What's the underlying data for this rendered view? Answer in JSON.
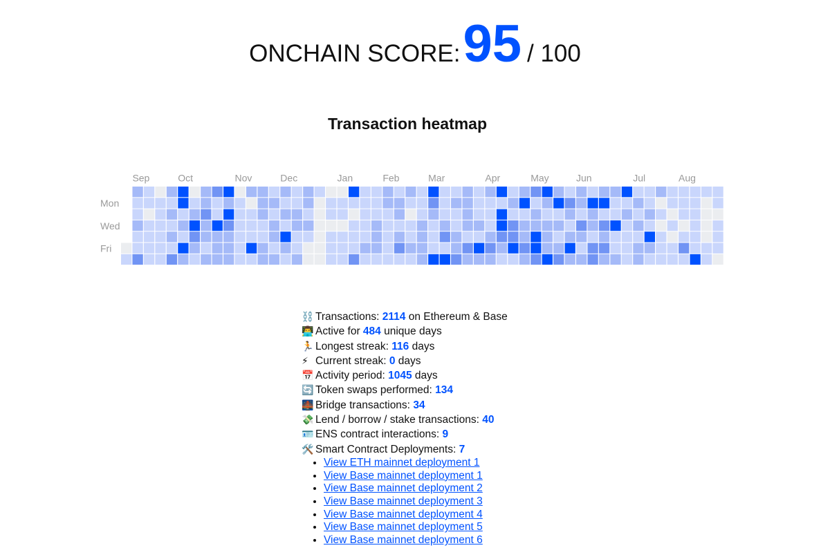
{
  "header": {
    "label": "ONCHAIN SCORE:",
    "score": 95,
    "max": "/ 100"
  },
  "chart_data": {
    "type": "heatmap",
    "title": "Transaction heatmap",
    "months": [
      "Sep",
      "Oct",
      "Nov",
      "Dec",
      "Jan",
      "Feb",
      "Mar",
      "Apr",
      "May",
      "Jun",
      "Jul",
      "Aug"
    ],
    "days": [
      null,
      "Mon",
      null,
      "Wed",
      null,
      "Fri",
      null
    ],
    "colors": [
      "#ebedf0",
      "#c9d6fc",
      "#a5baf8",
      "#7194f4",
      "#0052ff"
    ],
    "values": [
      [
        null,
        2,
        1,
        0,
        2,
        4,
        0,
        2,
        3,
        4,
        0,
        2,
        2,
        1,
        2,
        1,
        2,
        1,
        0,
        0,
        4,
        1,
        1,
        2,
        1,
        2,
        1,
        4,
        1,
        1,
        2,
        1,
        2,
        4,
        1,
        2,
        3,
        4,
        2,
        1,
        2,
        1,
        2,
        2,
        4,
        1,
        1,
        2,
        1,
        1,
        1,
        1,
        1
      ],
      [
        null,
        1,
        1,
        1,
        1,
        4,
        1,
        2,
        1,
        2,
        1,
        0,
        2,
        2,
        1,
        1,
        2,
        0,
        1,
        1,
        1,
        1,
        1,
        2,
        2,
        1,
        1,
        3,
        1,
        2,
        2,
        1,
        1,
        1,
        2,
        4,
        1,
        2,
        4,
        3,
        2,
        4,
        4,
        1,
        1,
        2,
        1,
        0,
        1,
        1,
        1,
        0,
        1
      ],
      [
        null,
        1,
        0,
        1,
        2,
        1,
        2,
        3,
        1,
        4,
        1,
        1,
        2,
        1,
        2,
        2,
        1,
        0,
        1,
        1,
        0,
        1,
        1,
        1,
        2,
        0,
        1,
        2,
        1,
        1,
        2,
        1,
        1,
        4,
        1,
        1,
        2,
        1,
        1,
        2,
        1,
        2,
        1,
        1,
        2,
        1,
        2,
        1,
        0,
        1,
        1,
        0,
        0
      ],
      [
        null,
        2,
        1,
        1,
        1,
        2,
        4,
        2,
        4,
        3,
        1,
        1,
        1,
        2,
        1,
        2,
        2,
        0,
        0,
        0,
        1,
        1,
        2,
        1,
        1,
        1,
        2,
        1,
        2,
        1,
        2,
        2,
        1,
        4,
        3,
        2,
        2,
        2,
        2,
        1,
        3,
        2,
        3,
        4,
        1,
        2,
        1,
        0,
        1,
        0,
        1,
        0,
        1
      ],
      [
        null,
        1,
        1,
        1,
        2,
        1,
        3,
        2,
        2,
        2,
        1,
        1,
        1,
        2,
        4,
        1,
        1,
        0,
        1,
        1,
        1,
        1,
        2,
        1,
        2,
        1,
        2,
        1,
        3,
        2,
        1,
        1,
        2,
        3,
        3,
        2,
        4,
        2,
        1,
        2,
        2,
        1,
        2,
        1,
        1,
        1,
        4,
        1,
        0,
        1,
        1,
        0,
        1
      ],
      [
        0,
        1,
        1,
        1,
        1,
        4,
        2,
        1,
        2,
        2,
        1,
        4,
        2,
        1,
        2,
        1,
        0,
        0,
        1,
        1,
        1,
        2,
        2,
        1,
        3,
        2,
        2,
        1,
        1,
        2,
        3,
        4,
        3,
        2,
        4,
        3,
        4,
        2,
        2,
        4,
        1,
        3,
        3,
        1,
        1,
        2,
        2,
        1,
        1,
        3,
        1,
        1,
        1
      ],
      [
        1,
        3,
        1,
        1,
        3,
        2,
        1,
        2,
        2,
        2,
        1,
        1,
        2,
        2,
        1,
        2,
        0,
        0,
        1,
        1,
        3,
        1,
        1,
        1,
        1,
        1,
        2,
        4,
        4,
        3,
        2,
        2,
        2,
        1,
        1,
        2,
        3,
        4,
        3,
        2,
        2,
        3,
        2,
        2,
        1,
        2,
        1,
        1,
        1,
        1,
        4,
        1,
        0
      ]
    ]
  },
  "stats": [
    {
      "icon": "⛓️",
      "label": "Transactions:",
      "value": 2114,
      "suffix": "on Ethereum & Base"
    },
    {
      "icon": "👨‍💻",
      "label": "Active for",
      "value": 484,
      "suffix": "unique days"
    },
    {
      "icon": "🏃",
      "label": "Longest streak:",
      "value": 116,
      "suffix": "days"
    },
    {
      "icon": "⚡",
      "label": "Current streak:",
      "value": 0,
      "suffix": "days"
    },
    {
      "icon": "📅",
      "label": "Activity period:",
      "value": 1045,
      "suffix": "days"
    },
    {
      "icon": "🔄",
      "label": "Token swaps performed:",
      "value": 134
    },
    {
      "icon": "🌉",
      "label": "Bridge transactions:",
      "value": 34
    },
    {
      "icon": "💸",
      "label": "Lend / borrow / stake transactions:",
      "value": 40
    },
    {
      "icon": "🪪",
      "label": "ENS contract interactions:",
      "value": 9
    },
    {
      "icon": "🛠️",
      "label": "Smart Contract Deployments:",
      "value": 7
    }
  ],
  "links": [
    "View ETH mainnet deployment 1",
    "View Base mainnet deployment 1",
    "View Base mainnet deployment 2",
    "View Base mainnet deployment 3",
    "View Base mainnet deployment 4",
    "View Base mainnet deployment 5",
    "View Base mainnet deployment 6"
  ]
}
